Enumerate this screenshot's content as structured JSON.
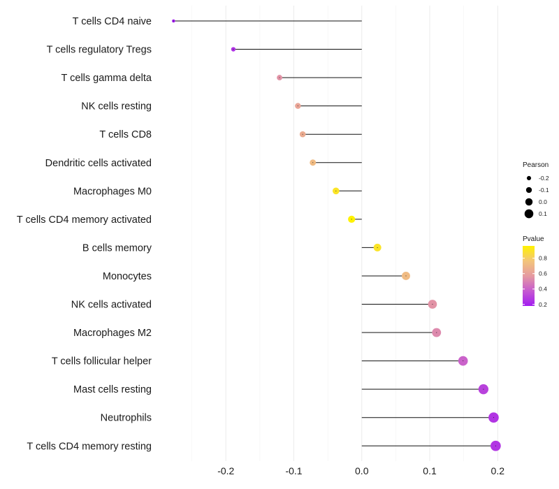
{
  "chart_data": {
    "type": "lollipop",
    "categories": [
      "T cells CD4 naive",
      "T cells regulatory  Tregs",
      "T cells gamma delta",
      "NK cells resting",
      "T cells CD8",
      "Dendritic cells activated",
      "Macrophages M0",
      "T cells CD4 memory activated",
      "B cells memory",
      "Monocytes",
      "NK cells activated",
      "Macrophages M2",
      "T cells follicular helper",
      "Mast cells resting",
      "Neutrophils",
      "T cells CD4 memory resting"
    ],
    "values": [
      -0.277,
      -0.189,
      -0.121,
      -0.094,
      -0.087,
      -0.072,
      -0.038,
      -0.015,
      0.023,
      0.065,
      0.104,
      0.11,
      0.149,
      0.179,
      0.194,
      0.197
    ],
    "pvalues": [
      0.05,
      0.25,
      0.55,
      0.62,
      0.65,
      0.72,
      0.9,
      0.96,
      0.9,
      0.72,
      0.55,
      0.52,
      0.4,
      0.3,
      0.26,
      0.26
    ],
    "xlim": [
      -0.3,
      0.21
    ],
    "xticks": [
      -0.2,
      -0.1,
      0.0,
      0.1,
      0.2
    ],
    "xtick_labels": [
      "-0.2",
      "-0.1",
      "0.0",
      "0.1",
      "0.2"
    ],
    "xlabel": "",
    "ylabel": "",
    "grid": true,
    "legend_size": {
      "title": "Pearson",
      "values": [
        -0.2,
        -0.1,
        0.0,
        0.1
      ],
      "labels": [
        "-0.2",
        "-0.1",
        "0.0",
        "0.1"
      ]
    },
    "legend_color": {
      "title": "Pvalue",
      "range": [
        0.18,
        0.96
      ],
      "ticks": [
        0.2,
        0.4,
        0.6,
        0.8
      ],
      "tick_labels": [
        "0.2",
        "0.4",
        "0.6",
        "0.8"
      ],
      "colors": [
        "#a21cf0",
        "#c65ad0",
        "#e59aa1",
        "#f3c57a",
        "#fff200"
      ]
    }
  }
}
